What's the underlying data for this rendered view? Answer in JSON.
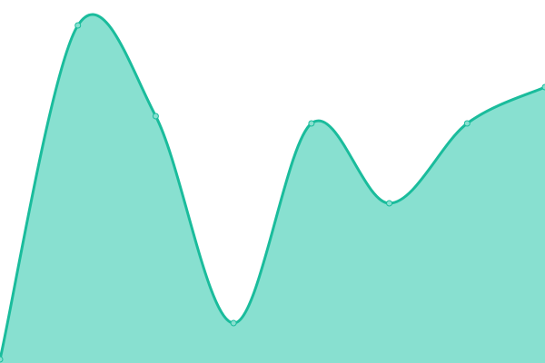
{
  "chart_data": {
    "type": "area",
    "title": "",
    "xlabel": "",
    "ylabel": "",
    "x": [
      0,
      1,
      2,
      3,
      4,
      5,
      6,
      7
    ],
    "values": [
      1,
      93,
      68,
      11,
      66,
      44,
      66,
      76
    ],
    "ylim": [
      0,
      100
    ],
    "smooth": true,
    "grid": false,
    "axes_visible": false,
    "colors": {
      "line": "#1abc9c",
      "fill": "#88e0d0",
      "marker_fill": "#88e0d0"
    }
  }
}
